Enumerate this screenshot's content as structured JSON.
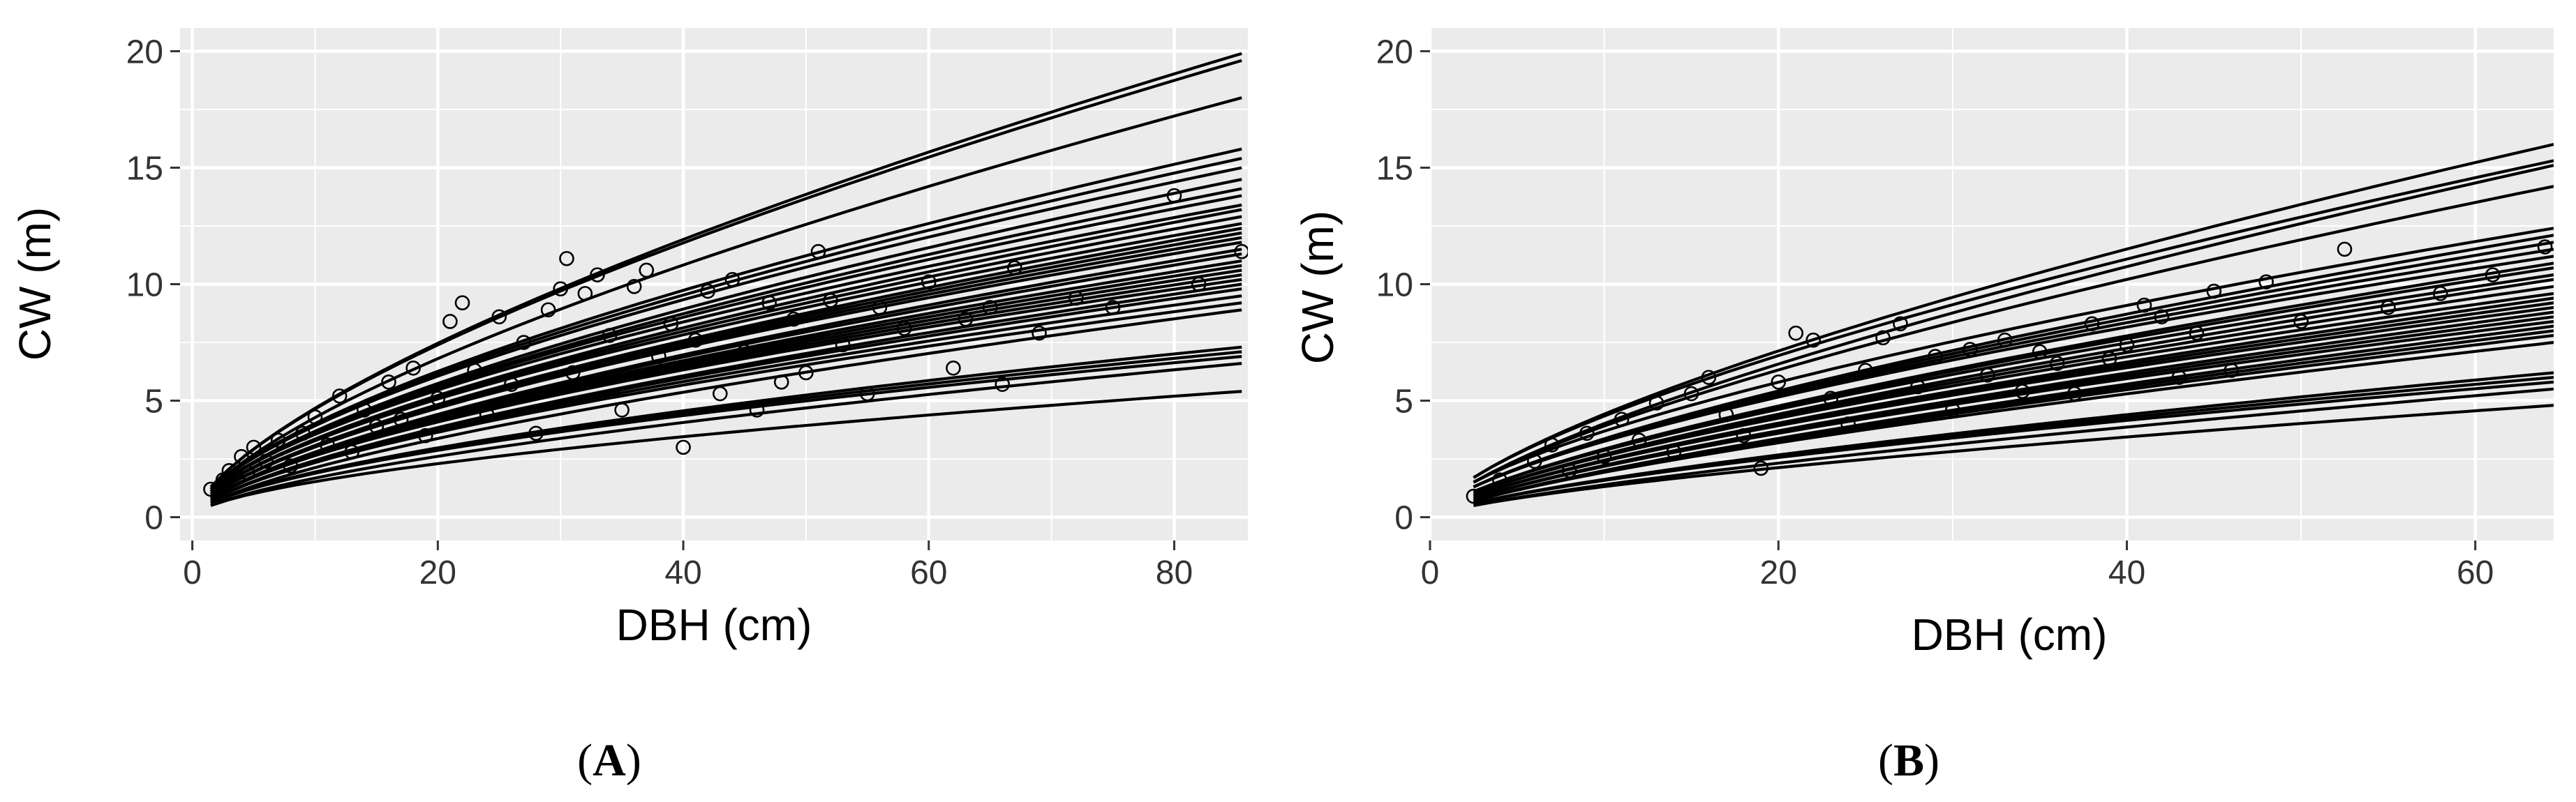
{
  "figure": {
    "background": "#ffffff",
    "panel_background": "#ebebeb",
    "grid_color": "#ffffff",
    "ink_color": "#000000"
  },
  "chart_data": [
    {
      "type": "scatter",
      "panel_label": "A",
      "xlabel": "DBH (cm)",
      "ylabel": "CW (m)",
      "xlim": [
        -1,
        86
      ],
      "ylim": [
        -1,
        21
      ],
      "xticks": [
        0,
        20,
        40,
        60,
        80
      ],
      "yticks": [
        0,
        5,
        10,
        15,
        20
      ],
      "grid": true,
      "point_style": "open-circle",
      "curve_x_range": [
        1.5,
        85.5
      ],
      "curve_end_values": [
        19.9,
        19.6,
        18.0,
        15.8,
        15.4,
        15.0,
        14.5,
        14.1,
        13.8,
        13.4,
        13.2,
        12.9,
        12.6,
        12.4,
        12.2,
        12.0,
        11.8,
        11.5,
        11.3,
        11.0,
        10.8,
        10.6,
        10.4,
        10.2,
        10.0,
        9.8,
        9.5,
        9.2,
        8.9,
        7.3,
        7.1,
        6.9,
        6.6,
        5.4
      ],
      "curve_start_values": [
        1.3,
        1.2,
        1.1,
        1.0,
        0.9,
        0.8,
        0.8,
        0.7,
        0.6,
        0.5
      ],
      "series": [
        {
          "name": "observed",
          "points": [
            [
              1.5,
              1.2
            ],
            [
              2.5,
              1.6
            ],
            [
              3,
              2.0
            ],
            [
              4,
              2.6
            ],
            [
              4.5,
              1.9
            ],
            [
              5,
              3.0
            ],
            [
              6,
              2.4
            ],
            [
              7,
              3.3
            ],
            [
              8,
              2.2
            ],
            [
              9,
              3.6
            ],
            [
              10,
              4.3
            ],
            [
              11,
              3.1
            ],
            [
              12,
              5.2
            ],
            [
              13,
              2.8
            ],
            [
              14,
              4.6
            ],
            [
              15,
              3.9
            ],
            [
              16,
              5.8
            ],
            [
              17,
              4.2
            ],
            [
              18,
              6.4
            ],
            [
              19,
              3.5
            ],
            [
              20,
              5.1
            ],
            [
              21,
              8.4
            ],
            [
              22,
              9.2
            ],
            [
              23,
              6.3
            ],
            [
              24,
              4.4
            ],
            [
              25,
              8.6
            ],
            [
              26,
              5.7
            ],
            [
              27,
              7.5
            ],
            [
              28,
              3.6
            ],
            [
              29,
              8.9
            ],
            [
              30,
              9.8
            ],
            [
              30.5,
              11.1
            ],
            [
              31,
              6.2
            ],
            [
              32,
              9.6
            ],
            [
              33,
              10.4
            ],
            [
              34,
              7.8
            ],
            [
              35,
              4.6
            ],
            [
              36,
              9.9
            ],
            [
              37,
              10.6
            ],
            [
              38,
              6.9
            ],
            [
              39,
              8.3
            ],
            [
              40,
              3.0
            ],
            [
              41,
              7.6
            ],
            [
              42,
              9.7
            ],
            [
              43,
              5.3
            ],
            [
              44,
              10.2
            ],
            [
              45,
              7.1
            ],
            [
              46,
              4.6
            ],
            [
              47,
              9.2
            ],
            [
              48,
              5.8
            ],
            [
              49,
              8.5
            ],
            [
              50,
              6.2
            ],
            [
              51,
              11.4
            ],
            [
              52,
              9.3
            ],
            [
              53,
              7.4
            ],
            [
              55,
              5.3
            ],
            [
              56,
              9.0
            ],
            [
              58,
              8.1
            ],
            [
              60,
              10.1
            ],
            [
              62,
              6.4
            ],
            [
              63,
              8.5
            ],
            [
              65,
              9.0
            ],
            [
              66,
              5.7
            ],
            [
              67,
              10.7
            ],
            [
              69,
              7.9
            ],
            [
              72,
              9.4
            ],
            [
              75,
              9.0
            ],
            [
              80,
              13.8
            ],
            [
              82,
              10.0
            ],
            [
              85.5,
              11.4
            ]
          ]
        }
      ]
    },
    {
      "type": "scatter",
      "panel_label": "B",
      "xlabel": "DBH (cm)",
      "ylabel": "CW (m)",
      "xlim": [
        0,
        64.5
      ],
      "ylim": [
        -1,
        21
      ],
      "xticks": [
        0,
        20,
        40,
        60
      ],
      "yticks": [
        0,
        5,
        10,
        15,
        20
      ],
      "grid": true,
      "point_style": "open-circle",
      "curve_x_range": [
        2.5,
        64.5
      ],
      "curve_end_values": [
        16.0,
        15.3,
        15.1,
        14.2,
        12.4,
        12.1,
        11.8,
        11.5,
        11.2,
        10.9,
        10.7,
        10.4,
        10.2,
        9.9,
        9.6,
        9.4,
        9.2,
        9.0,
        8.8,
        8.6,
        8.4,
        8.2,
        8.0,
        7.8,
        7.5,
        6.2,
        6.0,
        5.8,
        5.5,
        4.8
      ],
      "curve_start_values": [
        1.7,
        1.5,
        1.3,
        1.1,
        1.0,
        0.9,
        0.8,
        0.7,
        0.6,
        0.5
      ],
      "series": [
        {
          "name": "observed",
          "points": [
            [
              2.5,
              0.9
            ],
            [
              4,
              1.6
            ],
            [
              6,
              2.4
            ],
            [
              7,
              3.1
            ],
            [
              8,
              2.0
            ],
            [
              9,
              3.6
            ],
            [
              10,
              2.6
            ],
            [
              11,
              4.2
            ],
            [
              12,
              3.3
            ],
            [
              13,
              4.9
            ],
            [
              14,
              2.8
            ],
            [
              15,
              5.3
            ],
            [
              16,
              6.0
            ],
            [
              17,
              4.4
            ],
            [
              18,
              3.5
            ],
            [
              19,
              2.1
            ],
            [
              20,
              5.8
            ],
            [
              21,
              7.9
            ],
            [
              22,
              7.6
            ],
            [
              23,
              5.1
            ],
            [
              24,
              4.0
            ],
            [
              25,
              6.3
            ],
            [
              26,
              7.7
            ],
            [
              27,
              8.3
            ],
            [
              28,
              5.6
            ],
            [
              29,
              6.9
            ],
            [
              30,
              4.6
            ],
            [
              31,
              7.2
            ],
            [
              32,
              6.1
            ],
            [
              33,
              7.6
            ],
            [
              34,
              5.4
            ],
            [
              35,
              7.1
            ],
            [
              36,
              6.6
            ],
            [
              37,
              5.3
            ],
            [
              38,
              8.3
            ],
            [
              39,
              6.8
            ],
            [
              40,
              7.4
            ],
            [
              41,
              9.1
            ],
            [
              42,
              8.6
            ],
            [
              43,
              6.0
            ],
            [
              44,
              7.9
            ],
            [
              45,
              9.7
            ],
            [
              46,
              6.3
            ],
            [
              48,
              10.1
            ],
            [
              50,
              8.4
            ],
            [
              52.5,
              11.5
            ],
            [
              55,
              9.0
            ],
            [
              58,
              9.6
            ],
            [
              61,
              10.4
            ],
            [
              64,
              11.6
            ]
          ]
        }
      ]
    }
  ]
}
